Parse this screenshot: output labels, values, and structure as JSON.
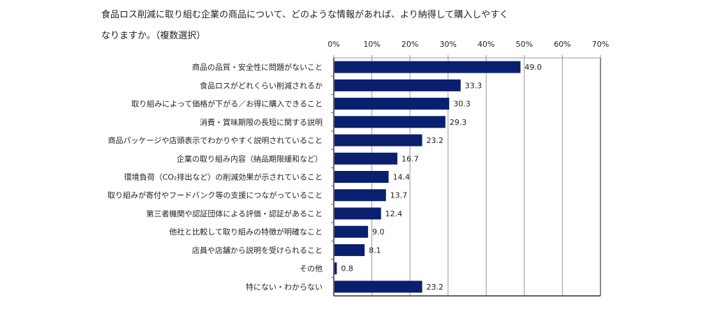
{
  "chart_data": {
    "type": "bar",
    "orientation": "horizontal",
    "title_lines": [
      "食品ロス削減に取り組む企業の商品について、どのような情報があれば、より納得して購入しやすく",
      "なりますか。（複数選択）"
    ],
    "categories": [
      "商品の品質・安全性に問題がないこと",
      "食品ロスがどれくらい削減されるか",
      "取り組みによって価格が下がる／お得に購入できること",
      "消費・賞味期限の長短に関する説明",
      "商品パッケージや店頭表示でわかりやすく説明されていること",
      "企業の取り組み内容（納品期限緩和など）",
      "環境負荷（CO₂排出など）の削減効果が示されていること",
      "取り組みが寄付やフードバンク等の支援につながっていること",
      "第三者機関や認証団体による評価・認証があること",
      "他社と比較して取り組みの特徴が明確なこと",
      "店員や店舗から説明を受けられること",
      "その他",
      "特にない・わからない"
    ],
    "values": [
      49.0,
      33.3,
      30.3,
      29.3,
      23.2,
      16.7,
      14.4,
      13.7,
      12.4,
      9.0,
      8.1,
      0.8,
      23.2
    ],
    "data_labels": [
      "49.0",
      "33.3",
      "30.3",
      "29.3",
      "23.2",
      "16.7",
      "14.4",
      "13.7",
      "12.4",
      "9.0",
      "8.1",
      "0.8",
      "23.2"
    ],
    "xlim": [
      0,
      70
    ],
    "x_ticks": [
      "0%",
      "10%",
      "20%",
      "30%",
      "40%",
      "50%",
      "60%",
      "70%"
    ],
    "x_axis_position": "top",
    "grid": true,
    "bar_color": "#0a1f6e",
    "xlabel": "",
    "ylabel": ""
  }
}
